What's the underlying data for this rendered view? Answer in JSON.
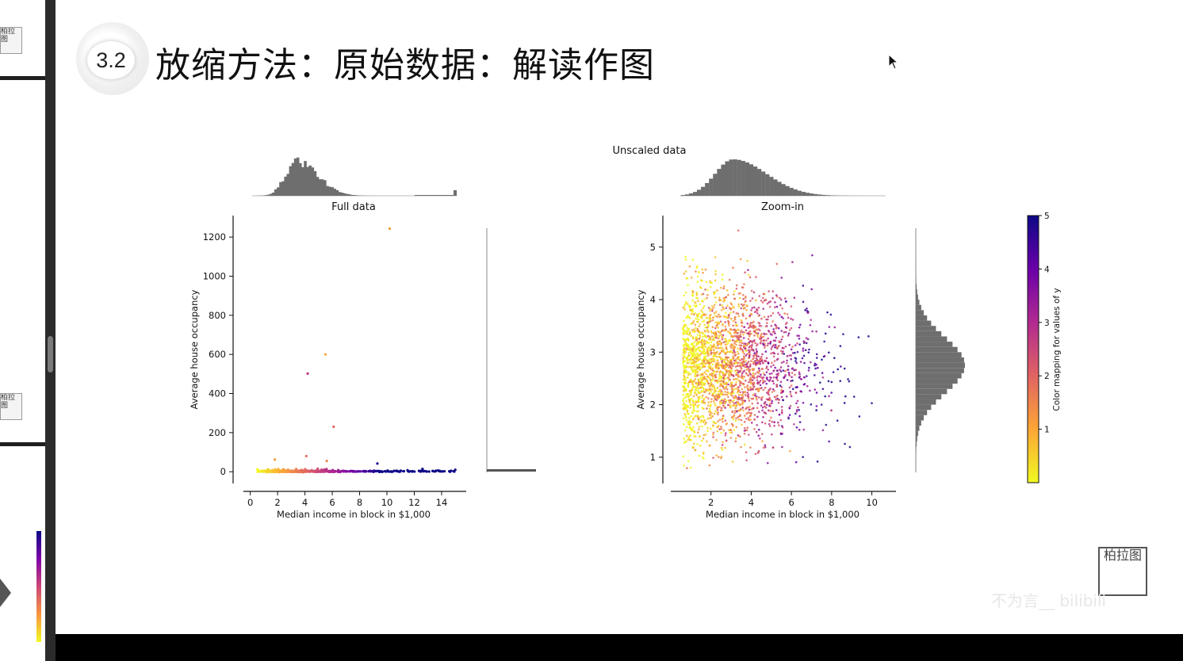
{
  "slide": {
    "section_number": "3.2",
    "title": "放缩方法：原始数据：解读作图"
  },
  "sidebar": {
    "thumb_logo_text": "柏拉图"
  },
  "watermark": {
    "logo_text": "柏拉图",
    "text": "不为言__ bilibili"
  },
  "colors": {
    "accent_plasma": [
      "#0d0887",
      "#6a00a8",
      "#b12a90",
      "#e16462",
      "#fca636",
      "#f0f921"
    ],
    "histogram": "#6e6e6e"
  },
  "chart_data": [
    {
      "type": "scatter",
      "suptitle": "Unscaled data",
      "title": "Full data",
      "xlabel": "Median income in block in $1,000",
      "ylabel": "Average house occupancy",
      "xlim": [
        -0.5,
        15.8
      ],
      "ylim": [
        -60,
        1310
      ],
      "xticks": [
        0,
        2,
        4,
        6,
        8,
        10,
        12,
        14
      ],
      "yticks": [
        0,
        200,
        400,
        600,
        800,
        1000,
        1200
      ],
      "outliers": [
        {
          "x": 10.2,
          "y": 1243,
          "c": 1.2
        },
        {
          "x": 5.5,
          "y": 600,
          "c": 1.0
        },
        {
          "x": 4.2,
          "y": 502,
          "c": 2.8
        },
        {
          "x": 6.1,
          "y": 230,
          "c": 2.0
        },
        {
          "x": 4.1,
          "y": 80,
          "c": 1.8
        },
        {
          "x": 5.6,
          "y": 55,
          "c": 1.5
        },
        {
          "x": 1.8,
          "y": 62,
          "c": 1.2
        },
        {
          "x": 9.3,
          "y": 42,
          "c": 4.8
        },
        {
          "x": 15.0,
          "y": 10,
          "c": 5.0
        }
      ],
      "histogram_x": {
        "bins": 60,
        "peak": 3.3,
        "note": "right-skewed income distribution, spike at 15"
      },
      "histogram_y": {
        "note": "all mass near 0"
      }
    },
    {
      "type": "scatter",
      "title": "Zoom-in",
      "xlabel": "Median income in block in $1,000",
      "ylabel": "Average house occupancy",
      "xlim": [
        0,
        11.2
      ],
      "ylim": [
        0.5,
        5.6
      ],
      "xticks": [
        2,
        4,
        6,
        8,
        10
      ],
      "yticks": [
        1,
        2,
        3,
        4,
        5
      ],
      "colorbar": {
        "label": "Color mapping for values of y",
        "range": [
          0,
          5
        ],
        "ticks": [
          1,
          2,
          3,
          4,
          5
        ],
        "colormap": "plasma_r"
      },
      "histogram_x": {
        "peak": 3.0,
        "range": [
          0.5,
          10.5
        ]
      },
      "histogram_y": {
        "peak": 2.7,
        "range": [
          0.7,
          5.4
        ]
      }
    }
  ]
}
